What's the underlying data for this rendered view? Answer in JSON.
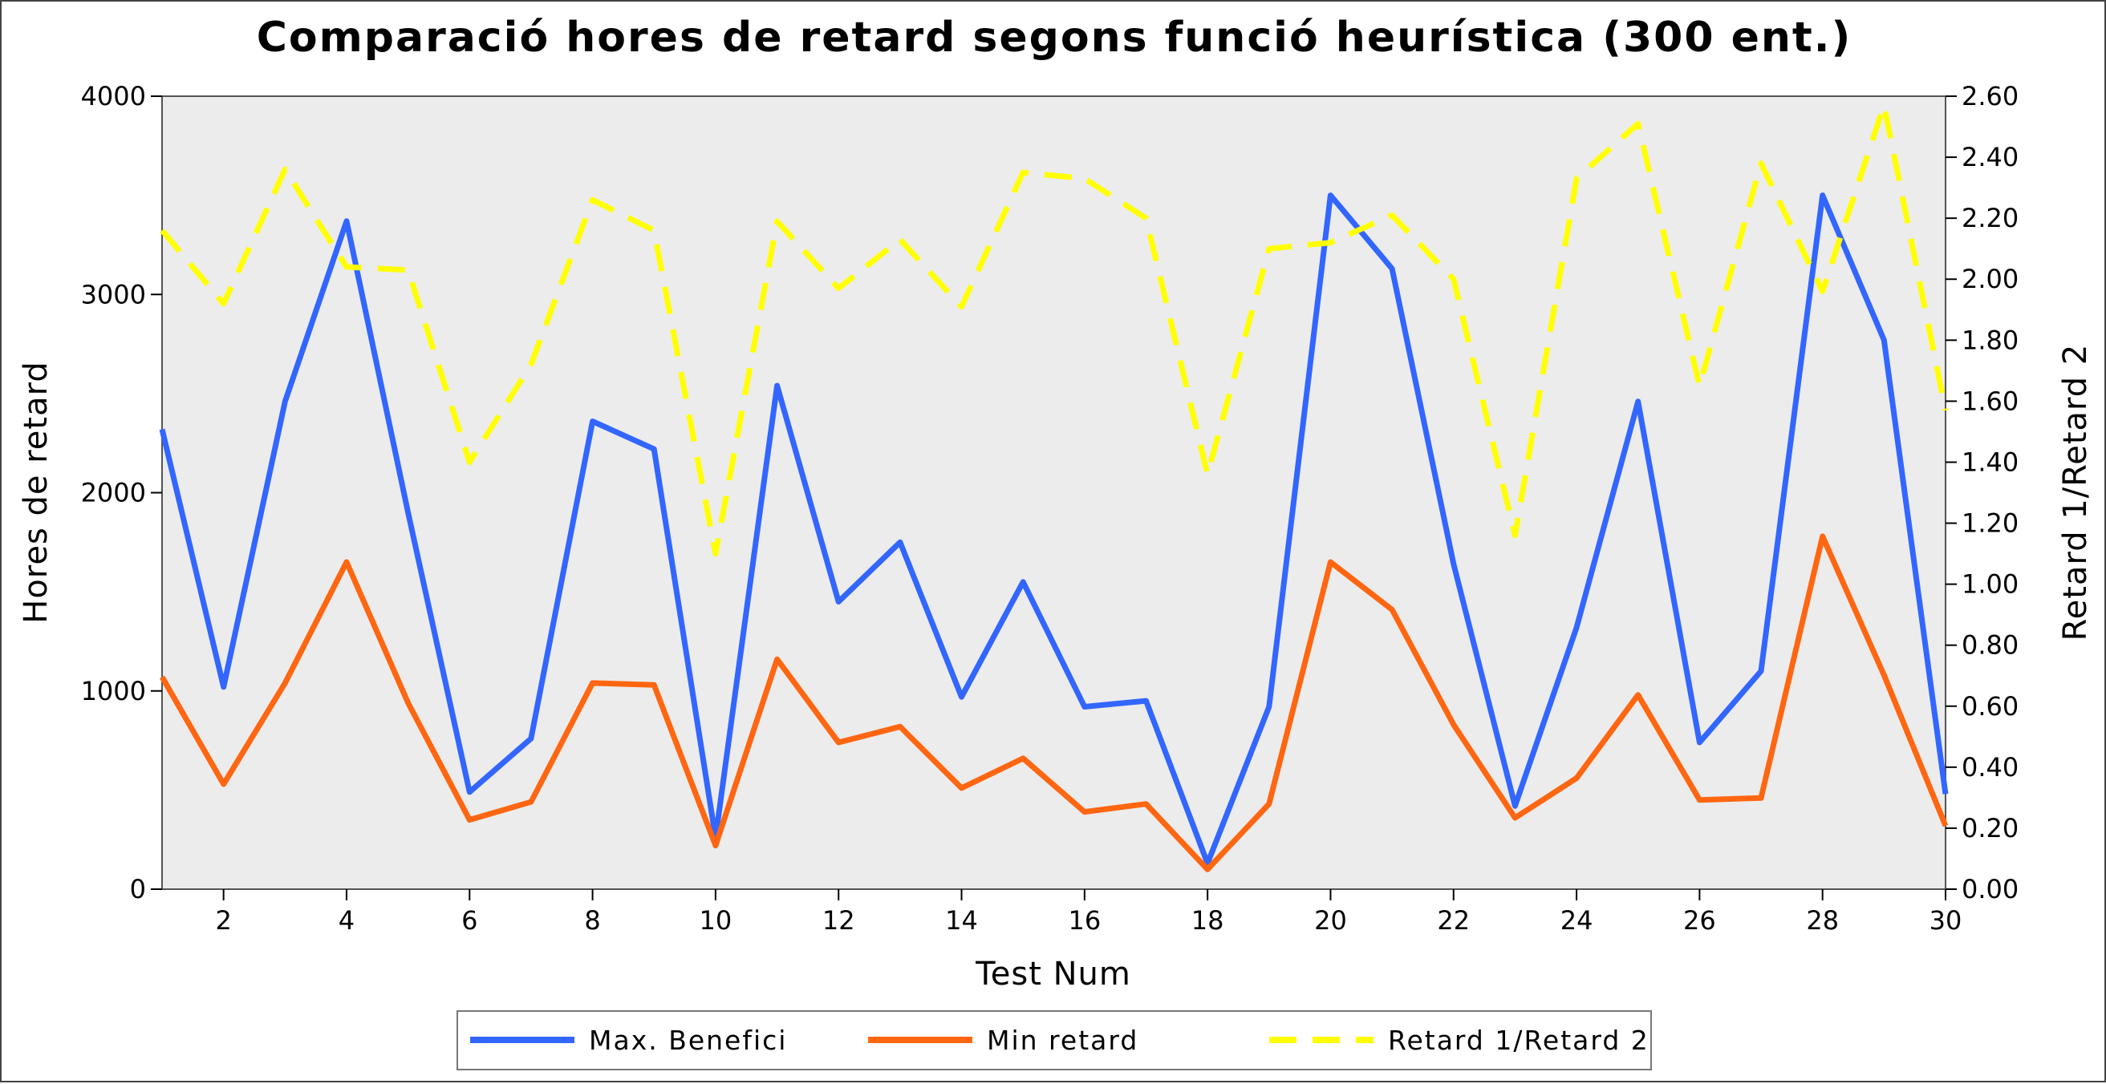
{
  "chart_data": {
    "type": "line",
    "title": "Comparació hores de retard segons funció heurística (300 ent.)",
    "xlabel": "Test Num",
    "ylabel": "Hores de retard",
    "y2label": "Retard 1/Retard 2",
    "xlim": [
      1,
      30
    ],
    "ylim": [
      0,
      4000
    ],
    "y2lim": [
      0,
      2.6
    ],
    "x_ticks": [
      "2",
      "4",
      "6",
      "8",
      "10",
      "12",
      "14",
      "16",
      "18",
      "20",
      "22",
      "24",
      "26",
      "28",
      "30"
    ],
    "y_ticks": [
      "0",
      "1000",
      "2000",
      "3000",
      "4000"
    ],
    "y2_ticks": [
      "0.00",
      "0.20",
      "0.40",
      "0.60",
      "0.80",
      "1.00",
      "1.20",
      "1.40",
      "1.60",
      "1.80",
      "2.00",
      "2.20",
      "2.40",
      "2.60"
    ],
    "grid": false,
    "legend_position": "bottom",
    "x": [
      1,
      2,
      3,
      4,
      5,
      6,
      7,
      8,
      9,
      10,
      11,
      12,
      13,
      14,
      15,
      16,
      17,
      18,
      19,
      20,
      21,
      22,
      23,
      24,
      25,
      26,
      27,
      28,
      29,
      30
    ],
    "series": [
      {
        "name": "Max. Benefici",
        "axis": "left",
        "color": "#3366ff",
        "dashed": false,
        "values": [
          2320,
          1020,
          2460,
          3370,
          1900,
          490,
          760,
          2360,
          2220,
          260,
          2540,
          1450,
          1750,
          970,
          1550,
          920,
          950,
          130,
          920,
          3500,
          3130,
          1640,
          420,
          1320,
          2460,
          740,
          1100,
          3500,
          2770,
          480
        ]
      },
      {
        "name": "Min retard",
        "axis": "left",
        "color": "#ff6611",
        "dashed": false,
        "values": [
          1070,
          530,
          1040,
          1650,
          940,
          350,
          440,
          1040,
          1030,
          220,
          1160,
          740,
          820,
          510,
          660,
          390,
          430,
          100,
          430,
          1650,
          1410,
          830,
          360,
          560,
          980,
          450,
          460,
          1780,
          1080,
          320
        ]
      },
      {
        "name": "Retard 1/Retard 2",
        "axis": "right",
        "color": "#ffff00",
        "dashed": true,
        "values": [
          2.16,
          1.92,
          2.36,
          2.04,
          2.03,
          1.4,
          1.72,
          2.26,
          2.16,
          1.1,
          2.19,
          1.97,
          2.13,
          1.91,
          2.35,
          2.33,
          2.2,
          1.36,
          2.1,
          2.12,
          2.21,
          2.0,
          1.16,
          2.33,
          2.51,
          1.65,
          2.38,
          1.96,
          2.57,
          1.57
        ]
      }
    ]
  }
}
